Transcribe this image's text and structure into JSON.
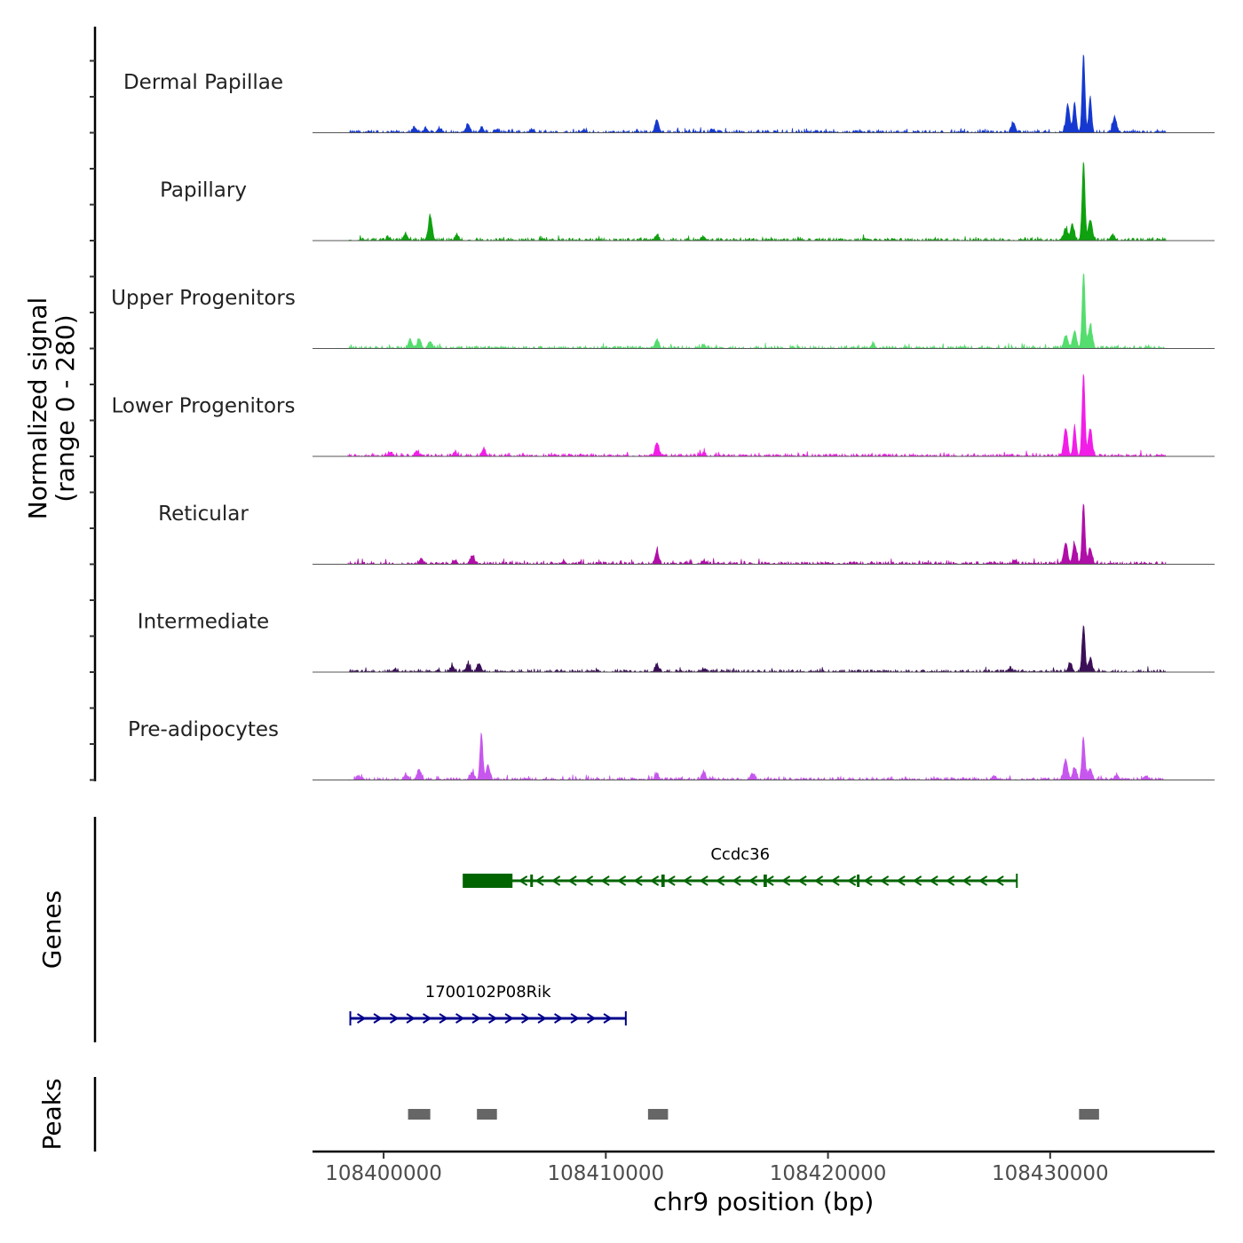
{
  "chart_data": {
    "type": "area",
    "title": "",
    "ylabel_line1": "Normalized signal",
    "ylabel_line2": "(range 0 - 280)",
    "y_range": [
      0,
      280
    ],
    "xlabel": "chr9 position (bp)",
    "xlim": [
      108396800,
      108437400
    ],
    "x_ticks": [
      108400000,
      108410000,
      108420000,
      108430000
    ],
    "x_tick_labels": [
      "108400000",
      "108410000",
      "108420000",
      "108430000"
    ],
    "series": [
      {
        "name": "Dermal Papillae",
        "color": "#1539d0",
        "peaks": [
          [
            108430800,
            95
          ],
          [
            108431100,
            108
          ],
          [
            108431500,
            270
          ],
          [
            108431800,
            125
          ],
          [
            108432900,
            55
          ],
          [
            108428350,
            35
          ],
          [
            108412300,
            45
          ],
          [
            108403800,
            30
          ],
          [
            108401400,
            18
          ],
          [
            108401900,
            15
          ],
          [
            108402500,
            15
          ],
          [
            108404400,
            15
          ],
          [
            108405100,
            12
          ],
          [
            108406700,
            10
          ],
          [
            108409000,
            10
          ],
          [
            108414800,
            12
          ]
        ]
      },
      {
        "name": "Papillary",
        "color": "#0fa10f",
        "peaks": [
          [
            108430700,
            42
          ],
          [
            108431000,
            55
          ],
          [
            108431500,
            280
          ],
          [
            108431800,
            70
          ],
          [
            108432800,
            20
          ],
          [
            108402100,
            85
          ],
          [
            108401000,
            22
          ],
          [
            108403300,
            18
          ],
          [
            108412300,
            18
          ],
          [
            108414400,
            14
          ],
          [
            108400200,
            10
          ]
        ]
      },
      {
        "name": "Upper Progenitors",
        "color": "#55dd6e",
        "peaks": [
          [
            108430700,
            45
          ],
          [
            108431100,
            60
          ],
          [
            108431500,
            265
          ],
          [
            108431800,
            80
          ],
          [
            108401200,
            28
          ],
          [
            108401600,
            33
          ],
          [
            108402100,
            22
          ],
          [
            108412300,
            30
          ],
          [
            108422000,
            12
          ],
          [
            108414400,
            10
          ]
        ]
      },
      {
        "name": "Lower Progenitors",
        "color": "#f21ee8",
        "peaks": [
          [
            108430700,
            95
          ],
          [
            108431100,
            105
          ],
          [
            108431500,
            290
          ],
          [
            108431800,
            95
          ],
          [
            108412300,
            48
          ],
          [
            108404500,
            25
          ],
          [
            108401500,
            18
          ],
          [
            108403200,
            12
          ],
          [
            108400300,
            14
          ],
          [
            108414400,
            10
          ]
        ]
      },
      {
        "name": "Reticular",
        "color": "#b00ea8",
        "peaks": [
          [
            108430700,
            75
          ],
          [
            108431100,
            70
          ],
          [
            108431500,
            215
          ],
          [
            108431800,
            55
          ],
          [
            108412300,
            45
          ],
          [
            108404000,
            30
          ],
          [
            108401700,
            20
          ],
          [
            108403200,
            12
          ],
          [
            108428400,
            14
          ],
          [
            108414400,
            12
          ],
          [
            108408100,
            10
          ]
        ]
      },
      {
        "name": "Intermediate",
        "color": "#3a0f57",
        "peaks": [
          [
            108430900,
            32
          ],
          [
            108431500,
            165
          ],
          [
            108431800,
            45
          ],
          [
            108404300,
            30
          ],
          [
            108403800,
            28
          ],
          [
            108403100,
            20
          ],
          [
            108412300,
            25
          ],
          [
            108428200,
            12
          ],
          [
            108400500,
            10
          ],
          [
            108414400,
            10
          ]
        ]
      },
      {
        "name": "Pre-adipocytes",
        "color": "#c756ee",
        "peaks": [
          [
            108430700,
            72
          ],
          [
            108431100,
            42
          ],
          [
            108431500,
            145
          ],
          [
            108431800,
            40
          ],
          [
            108404400,
            162
          ],
          [
            108404700,
            50
          ],
          [
            108401600,
            35
          ],
          [
            108401000,
            18
          ],
          [
            108404000,
            25
          ],
          [
            108412300,
            18
          ],
          [
            108414400,
            28
          ],
          [
            108416600,
            22
          ],
          [
            108433000,
            18
          ],
          [
            108434300,
            14
          ],
          [
            108398900,
            12
          ],
          [
            108427500,
            12
          ]
        ]
      }
    ],
    "genes": [
      {
        "name": "Ccdc36",
        "strand": "-",
        "start": 108403600,
        "end": 108428500,
        "color": "#006400",
        "exons": [
          [
            108403600,
            108405800
          ],
          [
            108406600,
            108406700
          ],
          [
            108412500,
            108412650
          ],
          [
            108417100,
            108417250
          ],
          [
            108421300,
            108421400
          ]
        ]
      },
      {
        "name": "1700102P08Rik",
        "strand": "+",
        "start": 108398500,
        "end": 108410900,
        "color": "#00008b",
        "exons": []
      }
    ],
    "peaks_track": {
      "label": "Peaks",
      "color": "#666666",
      "regions": [
        [
          108401100,
          108402100
        ],
        [
          108404200,
          108405100
        ],
        [
          108411900,
          108412800
        ],
        [
          108431300,
          108432200
        ]
      ]
    },
    "genes_track_label": "Genes"
  }
}
